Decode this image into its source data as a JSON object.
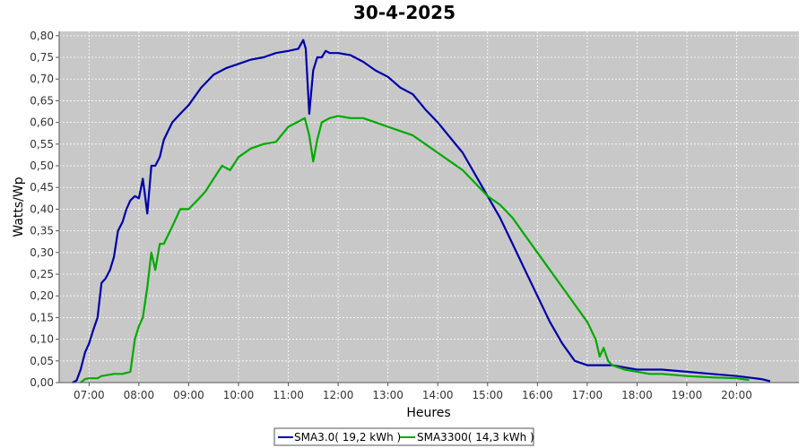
{
  "chart_data": {
    "type": "line",
    "title": "30-4-2025",
    "xlabel": "Heures",
    "ylabel": "Watts/Wp",
    "xlim": [
      6.4,
      21.25
    ],
    "ylim": [
      0,
      0.81
    ],
    "x_ticks": [
      "07:00",
      "08:00",
      "09:00",
      "10:00",
      "11:00",
      "12:00",
      "13:00",
      "14:00",
      "15:00",
      "16:00",
      "17:00",
      "18:00",
      "19:00",
      "20:00"
    ],
    "y_ticks": [
      "0,00",
      "0,05",
      "0,10",
      "0,15",
      "0,20",
      "0,25",
      "0,30",
      "0,35",
      "0,40",
      "0,45",
      "0,50",
      "0,55",
      "0,60",
      "0,65",
      "0,70",
      "0,75",
      "0,80"
    ],
    "grid": true,
    "legend_position": "bottom-center",
    "colors": {
      "plot_background": "#c8c8c8",
      "grid": "#ffffff"
    },
    "series": [
      {
        "name": "SMA3.0( 19,2 kWh )",
        "color": "#0000aa",
        "points": [
          [
            6.67,
            0.0
          ],
          [
            6.75,
            0.005
          ],
          [
            6.83,
            0.03
          ],
          [
            6.92,
            0.07
          ],
          [
            7.0,
            0.09
          ],
          [
            7.08,
            0.12
          ],
          [
            7.17,
            0.15
          ],
          [
            7.25,
            0.23
          ],
          [
            7.33,
            0.24
          ],
          [
            7.42,
            0.26
          ],
          [
            7.5,
            0.29
          ],
          [
            7.58,
            0.35
          ],
          [
            7.67,
            0.37
          ],
          [
            7.75,
            0.4
          ],
          [
            7.83,
            0.42
          ],
          [
            7.92,
            0.43
          ],
          [
            8.0,
            0.425
          ],
          [
            8.08,
            0.47
          ],
          [
            8.17,
            0.39
          ],
          [
            8.25,
            0.5
          ],
          [
            8.33,
            0.5
          ],
          [
            8.42,
            0.52
          ],
          [
            8.5,
            0.56
          ],
          [
            8.67,
            0.6
          ],
          [
            8.83,
            0.62
          ],
          [
            9.0,
            0.64
          ],
          [
            9.25,
            0.68
          ],
          [
            9.5,
            0.71
          ],
          [
            9.75,
            0.725
          ],
          [
            10.0,
            0.735
          ],
          [
            10.25,
            0.745
          ],
          [
            10.5,
            0.75
          ],
          [
            10.75,
            0.76
          ],
          [
            11.0,
            0.765
          ],
          [
            11.2,
            0.77
          ],
          [
            11.3,
            0.79
          ],
          [
            11.35,
            0.77
          ],
          [
            11.42,
            0.62
          ],
          [
            11.5,
            0.72
          ],
          [
            11.58,
            0.75
          ],
          [
            11.67,
            0.75
          ],
          [
            11.75,
            0.765
          ],
          [
            11.83,
            0.76
          ],
          [
            12.0,
            0.76
          ],
          [
            12.25,
            0.755
          ],
          [
            12.5,
            0.74
          ],
          [
            12.75,
            0.72
          ],
          [
            13.0,
            0.705
          ],
          [
            13.25,
            0.68
          ],
          [
            13.5,
            0.665
          ],
          [
            13.75,
            0.63
          ],
          [
            14.0,
            0.6
          ],
          [
            14.25,
            0.565
          ],
          [
            14.5,
            0.53
          ],
          [
            14.75,
            0.48
          ],
          [
            15.0,
            0.43
          ],
          [
            15.25,
            0.38
          ],
          [
            15.5,
            0.32
          ],
          [
            15.75,
            0.26
          ],
          [
            16.0,
            0.2
          ],
          [
            16.25,
            0.14
          ],
          [
            16.5,
            0.09
          ],
          [
            16.75,
            0.05
          ],
          [
            17.0,
            0.04
          ],
          [
            17.25,
            0.04
          ],
          [
            17.5,
            0.04
          ],
          [
            17.75,
            0.035
          ],
          [
            18.0,
            0.03
          ],
          [
            18.5,
            0.03
          ],
          [
            19.0,
            0.025
          ],
          [
            19.5,
            0.02
          ],
          [
            20.0,
            0.015
          ],
          [
            20.5,
            0.008
          ],
          [
            20.67,
            0.003
          ]
        ]
      },
      {
        "name": "SMA3300( 14,3 kWh )",
        "color": "#00aa00",
        "points": [
          [
            6.83,
            0.0
          ],
          [
            6.92,
            0.008
          ],
          [
            7.0,
            0.01
          ],
          [
            7.17,
            0.01
          ],
          [
            7.25,
            0.015
          ],
          [
            7.5,
            0.02
          ],
          [
            7.67,
            0.02
          ],
          [
            7.83,
            0.025
          ],
          [
            7.92,
            0.1
          ],
          [
            8.0,
            0.13
          ],
          [
            8.08,
            0.15
          ],
          [
            8.17,
            0.22
          ],
          [
            8.25,
            0.3
          ],
          [
            8.33,
            0.26
          ],
          [
            8.42,
            0.32
          ],
          [
            8.5,
            0.32
          ],
          [
            8.67,
            0.36
          ],
          [
            8.83,
            0.4
          ],
          [
            9.0,
            0.4
          ],
          [
            9.17,
            0.42
          ],
          [
            9.33,
            0.44
          ],
          [
            9.5,
            0.47
          ],
          [
            9.67,
            0.5
          ],
          [
            9.83,
            0.49
          ],
          [
            10.0,
            0.52
          ],
          [
            10.25,
            0.54
          ],
          [
            10.5,
            0.55
          ],
          [
            10.75,
            0.555
          ],
          [
            11.0,
            0.59
          ],
          [
            11.17,
            0.6
          ],
          [
            11.33,
            0.61
          ],
          [
            11.42,
            0.57
          ],
          [
            11.5,
            0.51
          ],
          [
            11.58,
            0.56
          ],
          [
            11.67,
            0.6
          ],
          [
            11.83,
            0.61
          ],
          [
            12.0,
            0.615
          ],
          [
            12.25,
            0.61
          ],
          [
            12.5,
            0.61
          ],
          [
            12.75,
            0.6
          ],
          [
            13.0,
            0.59
          ],
          [
            13.25,
            0.58
          ],
          [
            13.5,
            0.57
          ],
          [
            13.75,
            0.55
          ],
          [
            14.0,
            0.53
          ],
          [
            14.25,
            0.51
          ],
          [
            14.5,
            0.49
          ],
          [
            14.75,
            0.46
          ],
          [
            15.0,
            0.43
          ],
          [
            15.25,
            0.41
          ],
          [
            15.5,
            0.38
          ],
          [
            15.75,
            0.34
          ],
          [
            16.0,
            0.3
          ],
          [
            16.25,
            0.26
          ],
          [
            16.5,
            0.22
          ],
          [
            16.75,
            0.18
          ],
          [
            17.0,
            0.14
          ],
          [
            17.17,
            0.1
          ],
          [
            17.25,
            0.06
          ],
          [
            17.33,
            0.08
          ],
          [
            17.42,
            0.05
          ],
          [
            17.5,
            0.04
          ],
          [
            17.75,
            0.03
          ],
          [
            18.0,
            0.025
          ],
          [
            18.25,
            0.02
          ],
          [
            18.5,
            0.02
          ],
          [
            19.0,
            0.015
          ],
          [
            19.5,
            0.012
          ],
          [
            20.0,
            0.01
          ],
          [
            20.25,
            0.006
          ]
        ]
      }
    ]
  }
}
